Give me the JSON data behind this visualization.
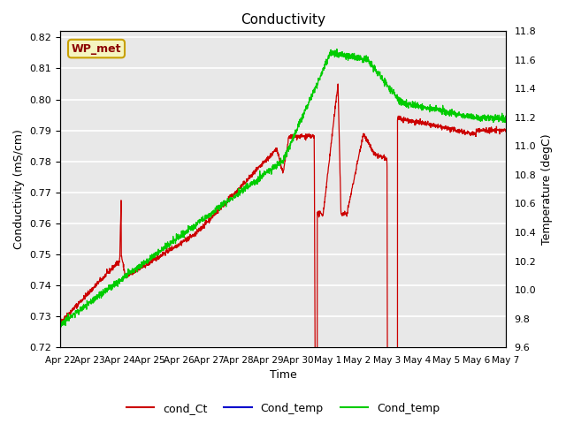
{
  "title": "Conductivity",
  "ylabel_left": "Conductivity (mS/cm)",
  "ylabel_right": "Temperature (degC)",
  "xlabel": "Time",
  "ylim_left": [
    0.72,
    0.822
  ],
  "ylim_right": [
    9.6,
    11.8
  ],
  "yticks_left": [
    0.72,
    0.73,
    0.74,
    0.75,
    0.76,
    0.77,
    0.78,
    0.79,
    0.8,
    0.81,
    0.82
  ],
  "yticks_right": [
    9.6,
    9.8,
    10.0,
    10.2,
    10.4,
    10.6,
    10.8,
    11.0,
    11.2,
    11.4,
    11.6,
    11.8
  ],
  "xtick_labels": [
    "Apr 22",
    "Apr 23",
    "Apr 24",
    "Apr 25",
    "Apr 26",
    "Apr 27",
    "Apr 28",
    "Apr 29",
    "Apr 30",
    "May 1",
    "May 2",
    "May 3",
    "May 4",
    "May 5",
    "May 6",
    "May 7"
  ],
  "bg_color": "#e8e8e8",
  "legend_label": "WP_met",
  "line_colors": [
    "#cc0000",
    "#0000cc",
    "#00cc00"
  ],
  "legend_labels": [
    "cond_Ct",
    "Cond_temp",
    "Cond_temp"
  ],
  "wp_met_color": "#8b0000",
  "wp_met_bg": "#f5f5c0",
  "wp_met_edge": "#c8a000"
}
